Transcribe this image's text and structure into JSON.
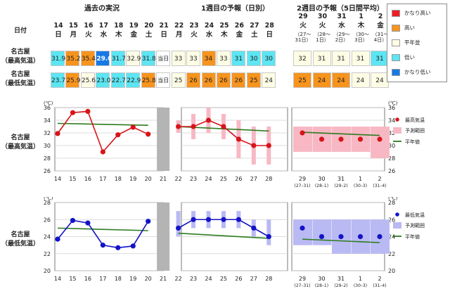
{
  "sections": {
    "past": "過去の実況",
    "week1": "1週目の予報（日別）",
    "week2": "2週目の予報（5日間平均）"
  },
  "row_labels": {
    "date": "日付",
    "max": [
      "名古屋",
      "（最高気温）"
    ],
    "min": [
      "名古屋",
      "（最低気温）"
    ]
  },
  "today_label": "当日",
  "days": [
    {
      "d": "14",
      "w": "日"
    },
    {
      "d": "15",
      "w": "月"
    },
    {
      "d": "16",
      "w": "火"
    },
    {
      "d": "17",
      "w": "水"
    },
    {
      "d": "18",
      "w": "木"
    },
    {
      "d": "19",
      "w": "金"
    },
    {
      "d": "20",
      "w": "土"
    },
    {
      "d": "21",
      "w": "日"
    },
    {
      "d": "22",
      "w": "月"
    },
    {
      "d": "23",
      "w": "火"
    },
    {
      "d": "24",
      "w": "水"
    },
    {
      "d": "25",
      "w": "木"
    },
    {
      "d": "26",
      "w": "金"
    },
    {
      "d": "27",
      "w": "土"
    },
    {
      "d": "28",
      "w": "日"
    }
  ],
  "week2_headers": [
    {
      "d": "29",
      "w": "火",
      "r1": "（27～",
      "r2": "31日）"
    },
    {
      "d": "30",
      "w": "火",
      "r1": "（28～",
      "r2": "1日）"
    },
    {
      "d": "31",
      "w": "水",
      "r1": "（29～",
      "r2": "2日）"
    },
    {
      "d": "1",
      "w": "木",
      "r1": "（30～",
      "r2": "3日）"
    },
    {
      "d": "2",
      "w": "金",
      "r1": "（31～",
      "r2": "4日）"
    }
  ],
  "colors": {
    "much_high": "#ee1c25",
    "high": "#f7941d",
    "normal": "#fdfde6",
    "low": "#5ce5f2",
    "much_low": "#1679e6",
    "today": "#ffffff",
    "max_marker": "#d7141a",
    "min_marker": "#1313c8",
    "normal_line": "#2d7b1f",
    "range_max": "#f7b8c4",
    "range_min": "#b9b9f4",
    "today_bar": "#b4b4b4"
  },
  "max_table": [
    {
      "v": "31.9",
      "c": "low"
    },
    {
      "v": "35.2",
      "c": "high"
    },
    {
      "v": "35.4",
      "c": "high"
    },
    {
      "v": "29.0",
      "c": "much_low"
    },
    {
      "v": "31.7",
      "c": "low"
    },
    {
      "v": "32.9",
      "c": "normal"
    },
    {
      "v": "31.8",
      "c": "low"
    },
    {
      "v": "当日",
      "c": "today"
    },
    {
      "v": "33",
      "c": "normal"
    },
    {
      "v": "33",
      "c": "normal"
    },
    {
      "v": "34",
      "c": "high"
    },
    {
      "v": "33",
      "c": "normal"
    },
    {
      "v": "31",
      "c": "low"
    },
    {
      "v": "30",
      "c": "low"
    },
    {
      "v": "30",
      "c": "low"
    }
  ],
  "max_week2": [
    {
      "v": "32",
      "c": "normal"
    },
    {
      "v": "31",
      "c": "normal"
    },
    {
      "v": "31",
      "c": "normal"
    },
    {
      "v": "31",
      "c": "normal"
    },
    {
      "v": "31",
      "c": "low"
    }
  ],
  "min_table": [
    {
      "v": "23.7",
      "c": "low"
    },
    {
      "v": "25.9",
      "c": "high"
    },
    {
      "v": "25.6",
      "c": "normal"
    },
    {
      "v": "23.0",
      "c": "low"
    },
    {
      "v": "22.7",
      "c": "low"
    },
    {
      "v": "22.9",
      "c": "low"
    },
    {
      "v": "25.8",
      "c": "high"
    },
    {
      "v": "当日",
      "c": "today"
    },
    {
      "v": "25",
      "c": "normal"
    },
    {
      "v": "26",
      "c": "high"
    },
    {
      "v": "26",
      "c": "high"
    },
    {
      "v": "26",
      "c": "high"
    },
    {
      "v": "26",
      "c": "high"
    },
    {
      "v": "25",
      "c": "high"
    },
    {
      "v": "24",
      "c": "normal"
    }
  ],
  "min_week2": [
    {
      "v": "25",
      "c": "high"
    },
    {
      "v": "24",
      "c": "high"
    },
    {
      "v": "24",
      "c": "high"
    },
    {
      "v": "24",
      "c": "normal"
    },
    {
      "v": "24",
      "c": "normal"
    }
  ],
  "legend": [
    {
      "label": "かなり高い",
      "c": "much_high"
    },
    {
      "label": "高い",
      "c": "high"
    },
    {
      "label": "平年並",
      "c": "normal"
    },
    {
      "label": "低い",
      "c": "low"
    },
    {
      "label": "かなり低い",
      "c": "much_low"
    }
  ],
  "chart_data": [
    {
      "type": "line",
      "title": "",
      "row_label": [
        "名古屋",
        "（最高気温）"
      ],
      "unit": "(℃)",
      "ylim": [
        26,
        36
      ],
      "yticks": [
        26,
        28,
        30,
        32,
        34,
        36
      ],
      "observed": {
        "x": [
          14,
          15,
          16,
          17,
          18,
          19,
          20
        ],
        "values": [
          31.9,
          35.2,
          35.4,
          29.0,
          31.7,
          32.9,
          31.8
        ],
        "normal": [
          33.5,
          33.2
        ]
      },
      "forecast": {
        "x": [
          22,
          23,
          24,
          25,
          26,
          27,
          28
        ],
        "values": [
          33,
          33,
          34,
          33,
          31,
          30,
          30
        ],
        "range": [
          [
            32,
            34
          ],
          [
            31,
            35
          ],
          [
            32,
            36
          ],
          [
            31,
            35
          ],
          [
            28,
            34
          ],
          [
            27,
            33
          ],
          [
            27,
            33
          ]
        ],
        "normal": [
          33.0,
          32.3
        ]
      },
      "week2": {
        "x": [
          "29",
          "30",
          "31",
          "1",
          "2"
        ],
        "x_sub": [
          "(27–31)",
          "(28–1)",
          "(29–2)",
          "(30–3)",
          "(31–4)"
        ],
        "values": [
          32,
          31,
          31,
          31,
          31
        ],
        "range": [
          [
            29,
            33
          ],
          [
            29,
            33
          ],
          [
            29,
            33
          ],
          [
            29,
            33
          ],
          [
            28,
            33
          ]
        ],
        "normal": [
          32.1,
          31.6
        ]
      },
      "legend": [
        "最高気温",
        "予測範囲",
        "平年値"
      ]
    },
    {
      "type": "line",
      "title": "",
      "row_label": [
        "名古屋",
        "（最低気温）"
      ],
      "unit": "(℃)",
      "ylim": [
        20,
        28
      ],
      "yticks": [
        20,
        22,
        24,
        26,
        28
      ],
      "observed": {
        "x": [
          14,
          15,
          16,
          17,
          18,
          19,
          20
        ],
        "values": [
          23.7,
          25.9,
          25.6,
          23.0,
          22.7,
          22.9,
          25.8
        ],
        "normal": [
          25.0,
          24.7
        ]
      },
      "forecast": {
        "x": [
          22,
          23,
          24,
          25,
          26,
          27,
          28
        ],
        "values": [
          25,
          26,
          26,
          26,
          26,
          25,
          24
        ],
        "range": [
          [
            24,
            27
          ],
          [
            25,
            27
          ],
          [
            25,
            27
          ],
          [
            25,
            27
          ],
          [
            25,
            27
          ],
          [
            24,
            26
          ],
          [
            23,
            26
          ]
        ],
        "normal": [
          24.4,
          23.8
        ]
      },
      "week2": {
        "x": [
          "29",
          "30",
          "31",
          "1",
          "2"
        ],
        "x_sub": [
          "(27–31)",
          "(28–1)",
          "(29–2)",
          "(30–3)",
          "(31–4)"
        ],
        "values": [
          25,
          24,
          24,
          24,
          24
        ],
        "range": [
          [
            23,
            26
          ],
          [
            23,
            26
          ],
          [
            22,
            26
          ],
          [
            22,
            26
          ],
          [
            22,
            26
          ]
        ],
        "normal": [
          23.7,
          23.3
        ]
      },
      "legend": [
        "最低気温",
        "予測範囲",
        "平年値"
      ]
    }
  ]
}
